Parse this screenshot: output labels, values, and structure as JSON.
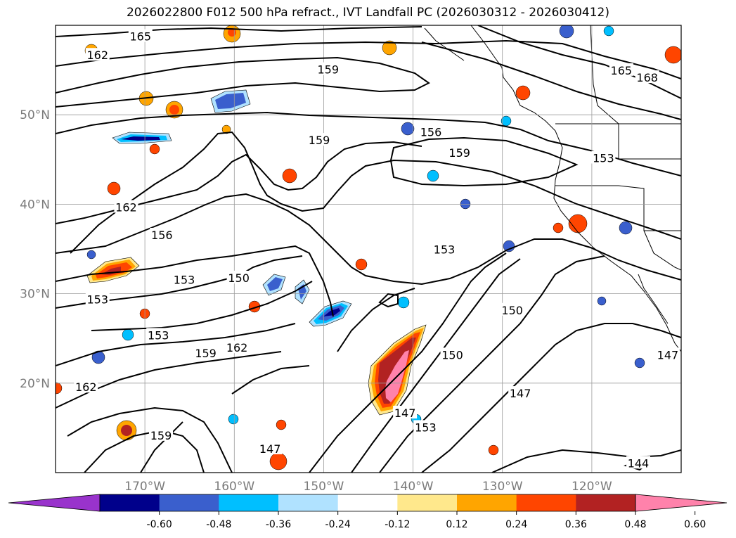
{
  "title": "2026022800 F012 500 hPa refract., IVT Landfall PC (2026030312 - 2026030412)",
  "map": {
    "projection": "PlateCarree",
    "lon_range": [
      -180,
      -110
    ],
    "lat_range": [
      10,
      60
    ],
    "lat_ticks": [
      {
        "value": 50,
        "label": "50°N"
      },
      {
        "value": 40,
        "label": "40°N"
      },
      {
        "value": 30,
        "label": "30°N"
      },
      {
        "value": 20,
        "label": "20°N"
      }
    ],
    "lon_ticks": [
      {
        "value": -170,
        "label": "170°W"
      },
      {
        "value": -160,
        "label": "160°W"
      },
      {
        "value": -150,
        "label": "150°W"
      },
      {
        "value": -140,
        "label": "140°W"
      },
      {
        "value": -130,
        "label": "130°W"
      },
      {
        "value": -120,
        "label": "120°W"
      }
    ],
    "grid": true
  },
  "contour_labels": [
    {
      "text": "165",
      "lon": -170.5,
      "lat": 58.7
    },
    {
      "text": "162",
      "lon": -175.3,
      "lat": 56.6
    },
    {
      "text": "159",
      "lon": -149.5,
      "lat": 55.0
    },
    {
      "text": "165",
      "lon": -116.7,
      "lat": 54.9
    },
    {
      "text": "168",
      "lon": -113.8,
      "lat": 54.1
    },
    {
      "text": "156",
      "lon": -138.0,
      "lat": 48.0
    },
    {
      "text": "159",
      "lon": -150.5,
      "lat": 47.1
    },
    {
      "text": "159",
      "lon": -134.8,
      "lat": 45.7
    },
    {
      "text": "153",
      "lon": -118.7,
      "lat": 45.1
    },
    {
      "text": "162",
      "lon": -172.1,
      "lat": 39.6
    },
    {
      "text": "156",
      "lon": -168.1,
      "lat": 36.5
    },
    {
      "text": "153",
      "lon": -136.5,
      "lat": 34.9
    },
    {
      "text": "153",
      "lon": -165.6,
      "lat": 31.5
    },
    {
      "text": "150",
      "lon": -159.5,
      "lat": 31.7
    },
    {
      "text": "153",
      "lon": -175.3,
      "lat": 29.3
    },
    {
      "text": "150",
      "lon": -128.9,
      "lat": 28.1
    },
    {
      "text": "153",
      "lon": -168.5,
      "lat": 25.3
    },
    {
      "text": "159",
      "lon": -163.2,
      "lat": 23.3
    },
    {
      "text": "162",
      "lon": -159.7,
      "lat": 23.9
    },
    {
      "text": "150",
      "lon": -135.6,
      "lat": 23.1
    },
    {
      "text": "147",
      "lon": -111.5,
      "lat": 23.1
    },
    {
      "text": "162",
      "lon": -176.6,
      "lat": 19.5
    },
    {
      "text": "147",
      "lon": -140.9,
      "lat": 16.6
    },
    {
      "text": "147",
      "lon": -128.0,
      "lat": 18.8
    },
    {
      "text": "153",
      "lon": -138.6,
      "lat": 15.0
    },
    {
      "text": "159",
      "lon": -168.2,
      "lat": 14.1
    },
    {
      "text": "147",
      "lon": -156.0,
      "lat": 12.6
    },
    {
      "text": "144",
      "lon": -114.8,
      "lat": 11.0
    }
  ],
  "colorbar": {
    "levels": [
      "-0.60",
      "-0.48",
      "-0.36",
      "-0.24",
      "-0.12",
      "0.12",
      "0.24",
      "0.36",
      "0.48",
      "0.60"
    ],
    "colors": [
      "#9933cc",
      "#00008b",
      "#3a5fcd",
      "#00bfff",
      "#b0e2ff",
      "#ffffff",
      "#ffe88c",
      "#ffa500",
      "#ff4500",
      "#b22222",
      "#ff82ab"
    ],
    "extend": "both"
  }
}
